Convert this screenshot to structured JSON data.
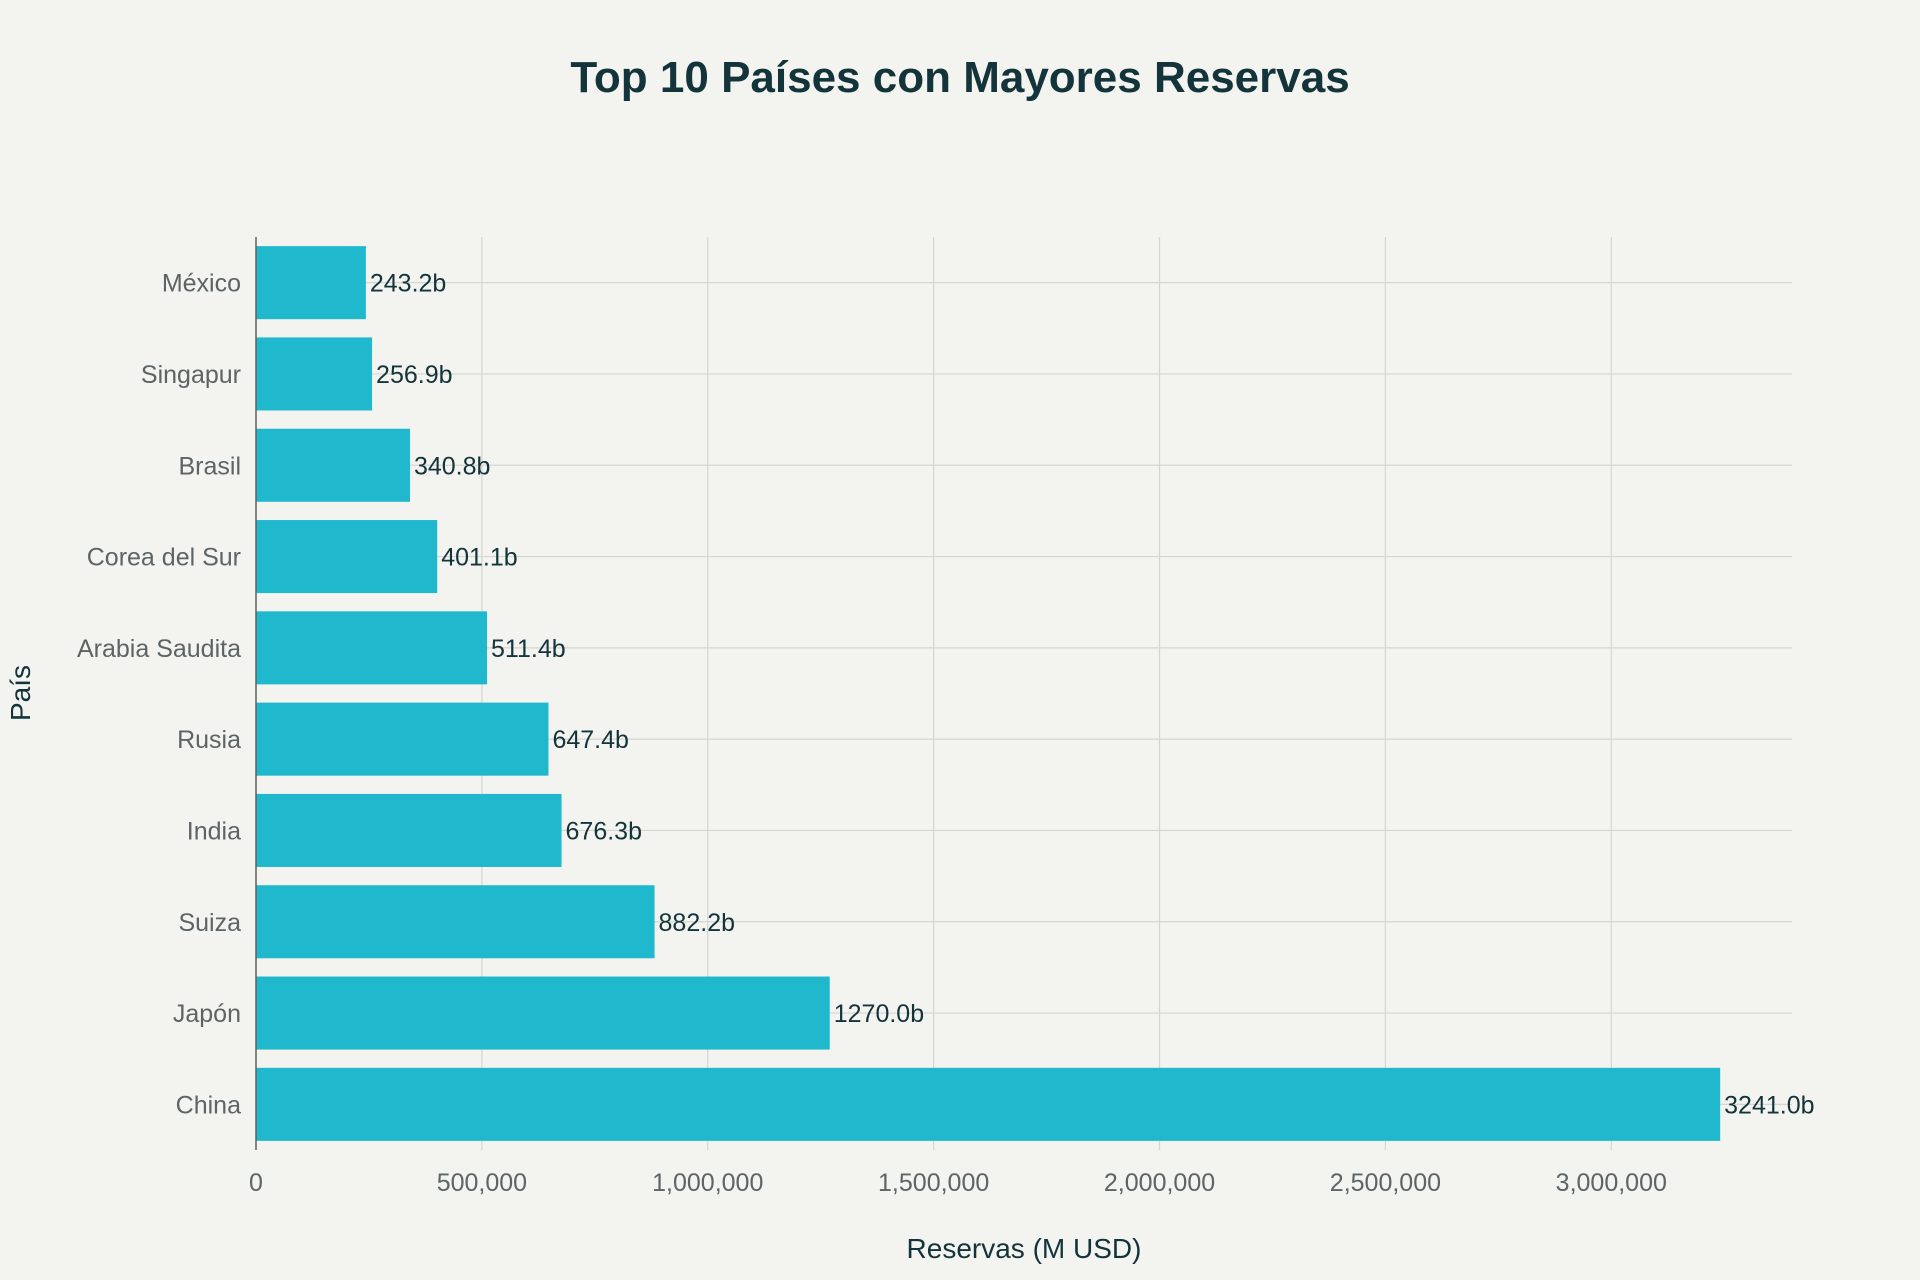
{
  "chart_data": {
    "type": "bar",
    "orientation": "horizontal",
    "title": "Top 10 Países con Mayores Reservas",
    "xlabel": "Reservas (M USD)",
    "ylabel": "País",
    "xlim": [
      0,
      3400000
    ],
    "xticks": [
      0,
      500000,
      1000000,
      1500000,
      2000000,
      2500000,
      3000000
    ],
    "xtick_labels": [
      "0",
      "500,000",
      "1,000,000",
      "1,500,000",
      "2,000,000",
      "2,500,000",
      "3,000,000"
    ],
    "grid": true,
    "categories": [
      "México",
      "Singapur",
      "Brasil",
      "Corea del Sur",
      "Arabia Saudita",
      "Rusia",
      "India",
      "Suiza",
      "Japón",
      "China"
    ],
    "values": [
      243200,
      256900,
      340800,
      401100,
      511400,
      647400,
      676300,
      882200,
      1270000,
      3241000
    ],
    "data_labels": [
      "243.2b",
      "256.9b",
      "340.8b",
      "401.1b",
      "511.4b",
      "647.4b",
      "676.3b",
      "882.2b",
      "1270.0b",
      "3241.0b"
    ],
    "colors": {
      "bar": "#1fb8cd",
      "title": "#13343b",
      "text": "#13343b",
      "tick": "#5c6466",
      "grid": "#d4d6d2",
      "axis": "#5f5f5f",
      "background": "#f3f3ef"
    }
  }
}
